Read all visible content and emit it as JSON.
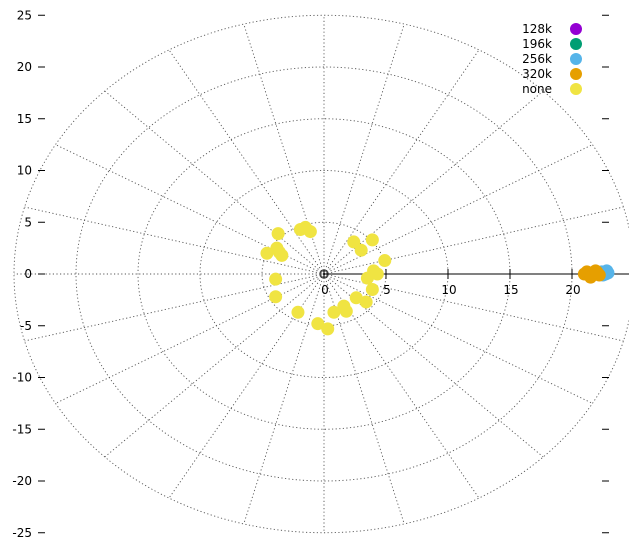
{
  "chart_data": {
    "type": "scatter",
    "title": "",
    "xlabel": "",
    "ylabel": "",
    "xlim": [
      -25,
      25
    ],
    "ylim": [
      -25,
      25
    ],
    "grid": "polar-dotted",
    "legend_position": "top-right",
    "x_ticks": [
      0,
      5,
      10,
      15,
      20
    ],
    "y_ticks": [
      25,
      20,
      15,
      10,
      5,
      0,
      -5,
      -10,
      -15,
      -20,
      -25
    ],
    "y_tick_labels": [
      "25",
      "20",
      "15",
      "10",
      "5",
      "0",
      "-5",
      "-10",
      "-15",
      "-20",
      "-25"
    ],
    "rings": [
      5,
      10,
      15,
      20,
      25
    ],
    "spokes_deg": [
      0,
      15,
      30,
      45,
      60,
      75,
      90,
      105,
      120,
      135,
      150,
      165,
      180,
      195,
      210,
      225,
      240,
      255,
      270,
      285,
      300,
      315,
      330,
      345
    ],
    "series": [
      {
        "name": "128k",
        "color": "#9400d3",
        "points": [
          [
            22.8,
            0.1
          ]
        ]
      },
      {
        "name": "196k",
        "color": "#009e73",
        "points": [
          [
            22.6,
            0.1
          ]
        ]
      },
      {
        "name": "256k",
        "color": "#56b4e9",
        "points": [
          [
            22.4,
            0.2
          ],
          [
            22.7,
            0.0
          ],
          [
            22.9,
            0.1
          ],
          [
            22.5,
            -0.1
          ],
          [
            22.8,
            0.3
          ]
        ]
      },
      {
        "name": "320k",
        "color": "#e69f00",
        "points": [
          [
            21.0,
            0.0
          ],
          [
            21.2,
            0.2
          ],
          [
            21.4,
            -0.1
          ],
          [
            21.6,
            0.1
          ],
          [
            21.8,
            0.0
          ],
          [
            22.0,
            0.2
          ],
          [
            22.2,
            -0.1
          ],
          [
            21.5,
            -0.3
          ],
          [
            21.9,
            0.3
          ]
        ]
      },
      {
        "name": "none",
        "color": "#f0e442",
        "points": [
          [
            -3.7,
            3.9
          ],
          [
            -3.8,
            2.5
          ],
          [
            -3.4,
            1.8
          ],
          [
            -3.6,
            2.1
          ],
          [
            -4.6,
            2.0
          ],
          [
            -1.5,
            4.5
          ],
          [
            -1.9,
            4.3
          ],
          [
            -1.1,
            4.1
          ],
          [
            2.4,
            3.1
          ],
          [
            3.0,
            2.3
          ],
          [
            3.9,
            3.3
          ],
          [
            4.9,
            1.3
          ],
          [
            4.0,
            0.3
          ],
          [
            4.3,
            0.0
          ],
          [
            3.5,
            -0.4
          ],
          [
            3.9,
            -1.5
          ],
          [
            3.4,
            -2.7
          ],
          [
            2.6,
            -2.3
          ],
          [
            1.8,
            -3.6
          ],
          [
            1.6,
            -3.1
          ],
          [
            0.8,
            -3.7
          ],
          [
            0.3,
            -5.3
          ],
          [
            -0.5,
            -4.8
          ],
          [
            -2.1,
            -3.7
          ],
          [
            -3.9,
            -2.2
          ],
          [
            -3.9,
            -0.5
          ]
        ]
      }
    ]
  }
}
